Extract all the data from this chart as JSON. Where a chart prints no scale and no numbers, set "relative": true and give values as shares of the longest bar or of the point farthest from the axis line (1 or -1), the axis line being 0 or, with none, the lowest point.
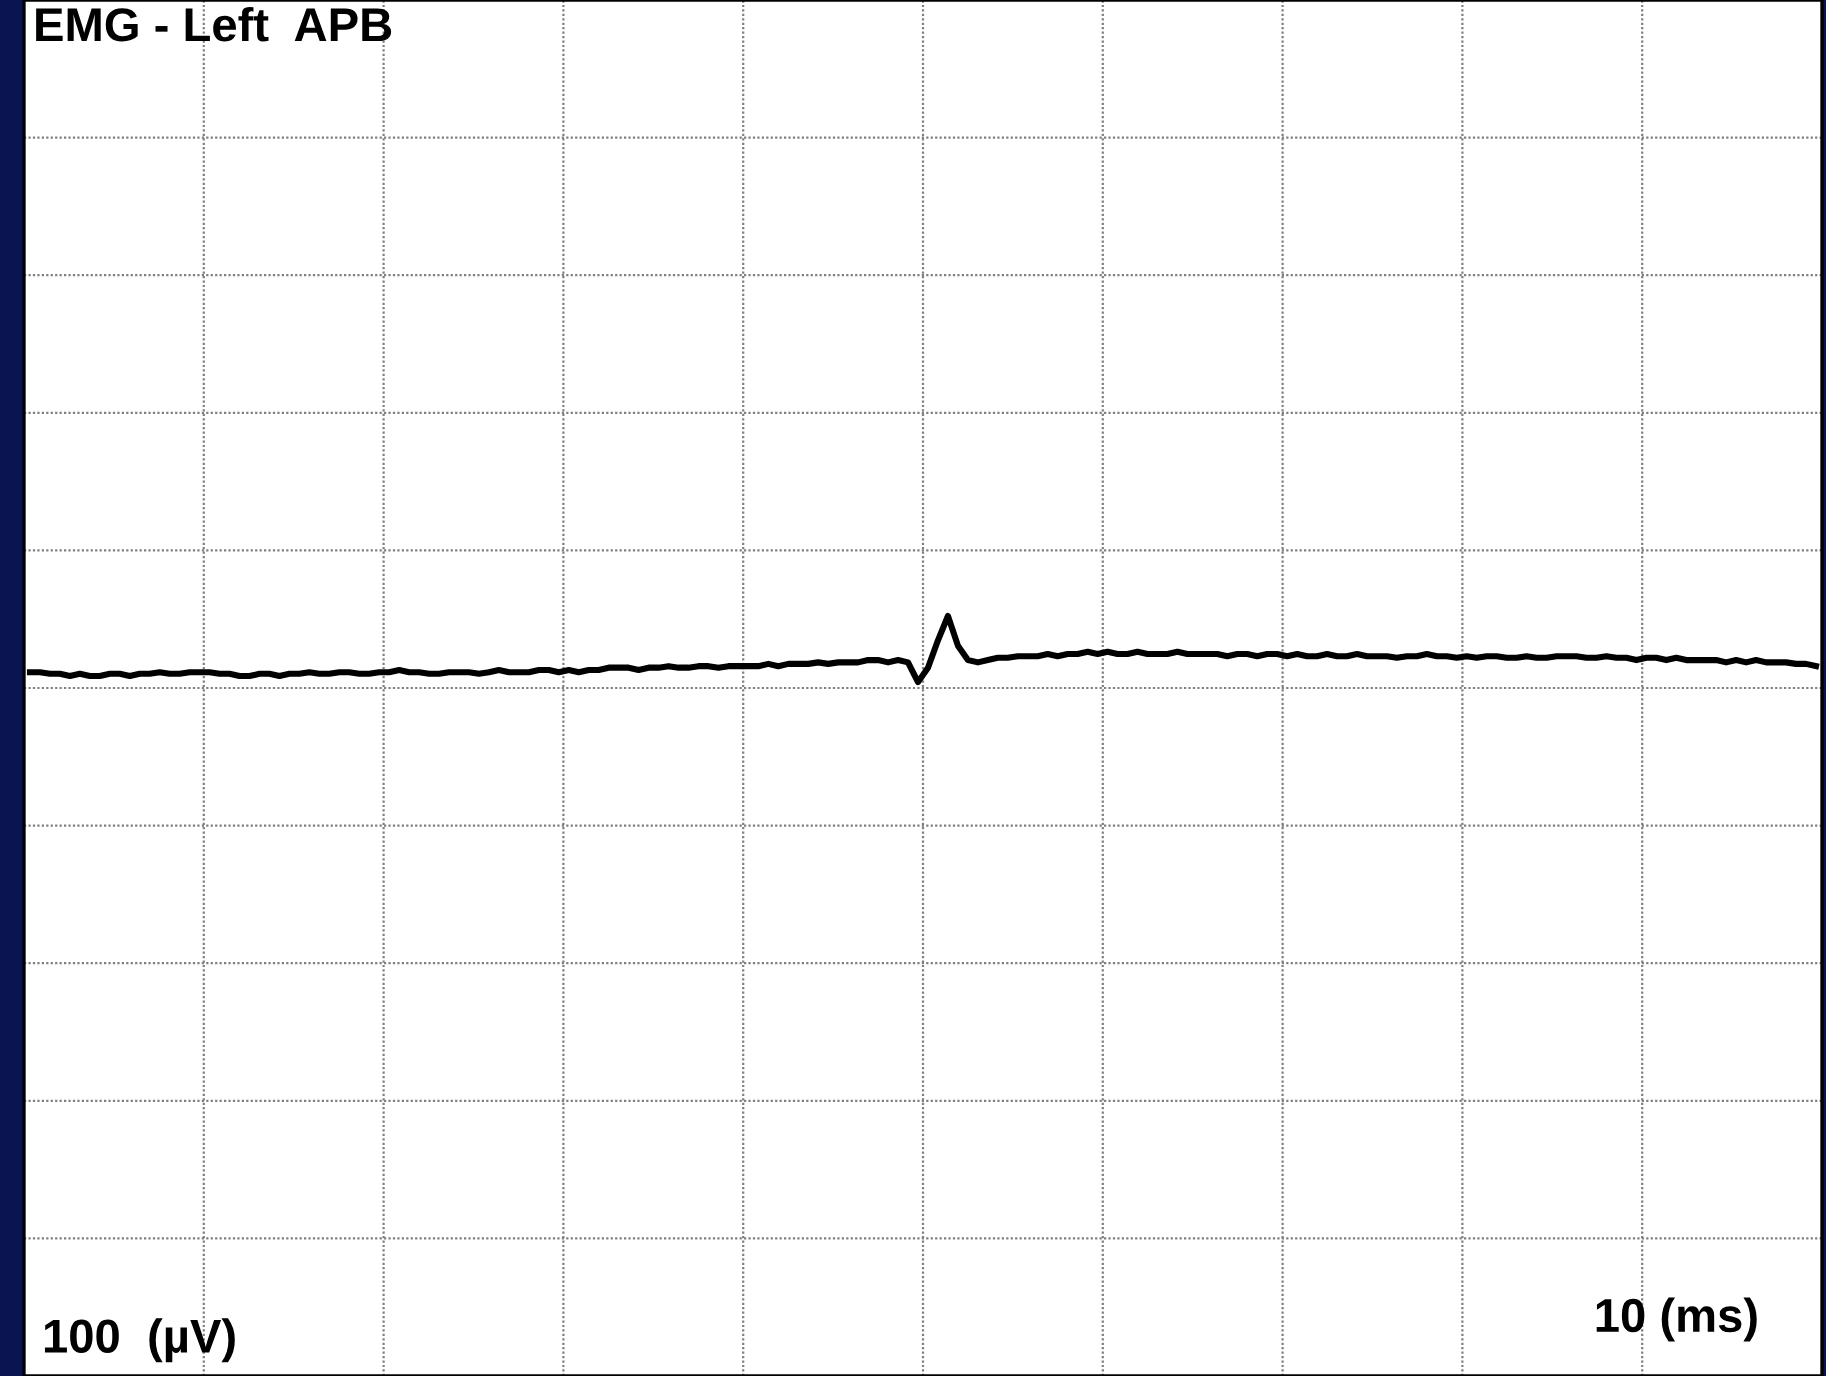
{
  "chart_data": {
    "type": "line",
    "title": "EMG - Left  APB",
    "relative": true,
    "annotations": [
      "100  (µV)",
      "10 (ms)"
    ],
    "categories": [
      null,
      null,
      null,
      null,
      null,
      null,
      null,
      null,
      null,
      null,
      null,
      null,
      null,
      null,
      null,
      null,
      null,
      null,
      null,
      null,
      null,
      null,
      null,
      null,
      null,
      null,
      null,
      null,
      null,
      null,
      null,
      null,
      null,
      null,
      null,
      null,
      null,
      null,
      null,
      null,
      null,
      null,
      null,
      null,
      null,
      null,
      null,
      null,
      null,
      null,
      null,
      null,
      null,
      null,
      null,
      null,
      null,
      null,
      null,
      null,
      null,
      null,
      null,
      null,
      null,
      null,
      null,
      null,
      null,
      null,
      null,
      null,
      null,
      null,
      null,
      null,
      null,
      null,
      null,
      null,
      null,
      null,
      null,
      null,
      null,
      null,
      null,
      null,
      null,
      null,
      null,
      null,
      null,
      null,
      null,
      null,
      null,
      null,
      null,
      null,
      null,
      null,
      null,
      null,
      null,
      null,
      null,
      null,
      null,
      null,
      null,
      null,
      null,
      null,
      null,
      null,
      null,
      null,
      null,
      null,
      null,
      null,
      null,
      null,
      null,
      null,
      null,
      null,
      null,
      null,
      null,
      null,
      null,
      null,
      null,
      null,
      null,
      null,
      null,
      null,
      null,
      null,
      null,
      null,
      null,
      null,
      null,
      null,
      null,
      null,
      null,
      null,
      null,
      null,
      null,
      null,
      null,
      null,
      null,
      null,
      null,
      null,
      null,
      null,
      null,
      null,
      null,
      null,
      null,
      null,
      null,
      null,
      null,
      null,
      null,
      null,
      null,
      null,
      null,
      null
    ],
    "grid": true,
    "marker": "none",
    "line_style": "solid",
    "series": [
      {
        "color": "#000000",
        "values": [
          0.926,
          0.926,
          0.924,
          0.924,
          0.921,
          0.924,
          0.921,
          0.921,
          0.924,
          0.924,
          0.921,
          0.924,
          0.924,
          0.926,
          0.924,
          0.924,
          0.926,
          0.926,
          0.926,
          0.924,
          0.924,
          0.921,
          0.921,
          0.924,
          0.924,
          0.921,
          0.924,
          0.924,
          0.926,
          0.924,
          0.924,
          0.926,
          0.926,
          0.924,
          0.924,
          0.926,
          0.926,
          0.929,
          0.926,
          0.926,
          0.924,
          0.924,
          0.926,
          0.926,
          0.926,
          0.924,
          0.926,
          0.929,
          0.926,
          0.926,
          0.926,
          0.929,
          0.929,
          0.926,
          0.929,
          0.926,
          0.929,
          0.929,
          0.932,
          0.932,
          0.932,
          0.929,
          0.932,
          0.932,
          0.934,
          0.932,
          0.932,
          0.934,
          0.934,
          0.932,
          0.934,
          0.934,
          0.934,
          0.934,
          0.937,
          0.934,
          0.937,
          0.937,
          0.937,
          0.939,
          0.937,
          0.939,
          0.939,
          0.939,
          0.942,
          0.942,
          0.939,
          0.942,
          0.939,
          0.913,
          0.932,
          0.968,
          1,
          0.961,
          0.942,
          0.939,
          0.942,
          0.945,
          0.945,
          0.947,
          0.947,
          0.947,
          0.95,
          0.947,
          0.95,
          0.95,
          0.953,
          0.95,
          0.953,
          0.95,
          0.95,
          0.953,
          0.95,
          0.95,
          0.95,
          0.953,
          0.95,
          0.95,
          0.95,
          0.95,
          0.947,
          0.95,
          0.95,
          0.947,
          0.95,
          0.95,
          0.947,
          0.95,
          0.947,
          0.947,
          0.95,
          0.947,
          0.947,
          0.95,
          0.947,
          0.947,
          0.947,
          0.945,
          0.947,
          0.947,
          0.95,
          0.947,
          0.947,
          0.945,
          0.947,
          0.945,
          0.947,
          0.947,
          0.945,
          0.945,
          0.947,
          0.945,
          0.945,
          0.947,
          0.947,
          0.947,
          0.945,
          0.945,
          0.947,
          0.945,
          0.945,
          0.942,
          0.945,
          0.945,
          0.942,
          0.945,
          0.942,
          0.942,
          0.942,
          0.942,
          0.939,
          0.942,
          0.939,
          0.942,
          0.939,
          0.939,
          0.939,
          0.937,
          0.937,
          0.934
        ]
      }
    ]
  }
}
